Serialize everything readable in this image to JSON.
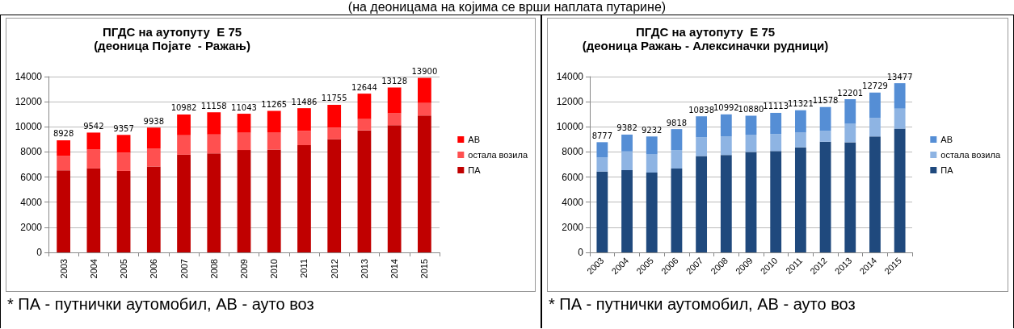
{
  "chart_data": [
    {
      "type": "bar",
      "title": "ПГДС на аутопуту  Е 75",
      "subtitle": "(деоница Појате  - Ражањ)",
      "categories": [
        "2003",
        "2004",
        "2005",
        "2006",
        "2007",
        "2008",
        "2009",
        "2010",
        "2011",
        "2012",
        "2013",
        "2014",
        "2015"
      ],
      "stacked": true,
      "series": [
        {
          "name": "ПА",
          "color": "#c00000",
          "values": [
            6540,
            6690,
            6490,
            6840,
            7780,
            7890,
            8150,
            8190,
            8540,
            9030,
            9720,
            10130,
            10900
          ]
        },
        {
          "name": "остала возила",
          "color": "#ff5050",
          "values": [
            1160,
            1500,
            1450,
            1440,
            1550,
            1510,
            1380,
            1380,
            1140,
            910,
            900,
            950,
            1000
          ]
        },
        {
          "name": "АВ",
          "color": "#ff0000",
          "values": [
            1228,
            1352,
            1417,
            1658,
            1652,
            1758,
            1513,
            1695,
            1806,
            1815,
            2024,
            2048,
            2000
          ]
        }
      ],
      "totals": [
        "8928",
        "9542",
        "9357",
        "9938",
        "10982",
        "11158",
        "11043",
        "11265",
        "11486",
        "11755",
        "12644",
        "13128",
        "13900"
      ],
      "ylim": [
        0,
        14000
      ],
      "yticks": [
        0,
        2000,
        4000,
        6000,
        8000,
        10000,
        12000,
        14000
      ],
      "grid": "y",
      "legend": "right",
      "annotations": [
        "(на деоницама на којима се врши наплата путарине)",
        "* ПА - путнички аутомобил,  АВ - ауто воз"
      ]
    },
    {
      "type": "bar",
      "title": "ПГДС на аутопуту  Е 75",
      "subtitle": "(деоница Ражањ - Алексиначки рудници)",
      "categories": [
        "2003",
        "2004",
        "2005",
        "2006",
        "2007",
        "2008",
        "2009",
        "2010",
        "2011",
        "2012",
        "2013",
        "2014",
        "2015"
      ],
      "stacked": true,
      "series": [
        {
          "name": "ПА",
          "color": "#1f497d",
          "values": [
            6440,
            6550,
            6350,
            6680,
            7670,
            7760,
            8000,
            8070,
            8370,
            8810,
            8770,
            9230,
            9850
          ]
        },
        {
          "name": "остала возила",
          "color": "#8eb4e3",
          "values": [
            1120,
            1490,
            1450,
            1470,
            1490,
            1470,
            1380,
            1360,
            1170,
            880,
            1470,
            1470,
            1600
          ]
        },
        {
          "name": "АВ",
          "color": "#558ed5",
          "values": [
            1217,
            1342,
            1432,
            1668,
            1678,
            1762,
            1500,
            1683,
            1781,
            1888,
            1961,
            2029,
            2027
          ]
        }
      ],
      "totals": [
        "8777",
        "9382",
        "9232",
        "9818",
        "10838",
        "10992",
        "10880",
        "11113",
        "11321",
        "11578",
        "12201",
        "12729",
        "13477"
      ],
      "ylim": [
        0,
        14000
      ],
      "yticks": [
        0,
        2000,
        4000,
        6000,
        8000,
        10000,
        12000,
        14000
      ],
      "grid": "y",
      "legend": "right",
      "annotations": [
        "* ПА - путнички аутомобил,  АВ - ауто воз"
      ]
    }
  ]
}
